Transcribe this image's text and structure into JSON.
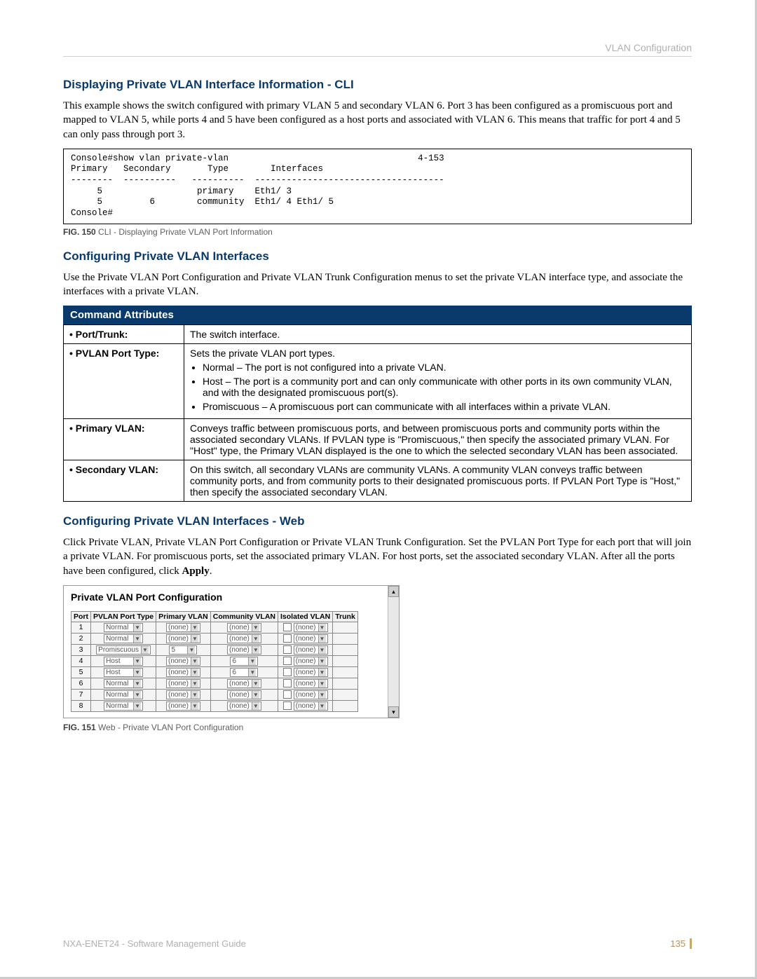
{
  "header": {
    "section_name": "VLAN Configuration"
  },
  "sec1": {
    "title": "Displaying Private VLAN Interface Information - CLI",
    "body": "This example shows the switch configured with primary VLAN 5 and secondary VLAN 6. Port 3 has been configured as a promiscuous port and mapped to VLAN 5, while ports 4 and 5 have been configured as a host ports and associated with VLAN 6. This means that traffic for port 4 and 5 can only pass through port 3.",
    "cli": "Console#show vlan private-vlan                                    4-153\nPrimary   Secondary       Type        Interfaces\n--------  ----------   ----------  ------------------------------------\n     5                  primary    Eth1/ 3\n     5         6        community  Eth1/ 4 Eth1/ 5\nConsole#",
    "fig_num": "FIG. 150",
    "fig_caption": "CLI - Displaying Private VLAN Port Information"
  },
  "sec2": {
    "title": "Configuring Private VLAN Interfaces",
    "body": "Use the Private VLAN Port Configuration and Private VLAN Trunk Configuration menus to set the private VLAN interface type, and associate the interfaces with a private VLAN.",
    "cmd_header": "Command Attributes",
    "rows": {
      "r1": {
        "label": "• Port/Trunk:",
        "desc": "The switch interface."
      },
      "r2": {
        "label": "• PVLAN Port Type:",
        "intro": "Sets the private VLAN port types.",
        "b1": "Normal – The port is not configured into a private VLAN.",
        "b2": "Host – The port is a community port and can only communicate with other ports in its own community VLAN, and with the designated promiscuous port(s).",
        "b3": "Promiscuous – A promiscuous port can communicate with all interfaces within a private VLAN."
      },
      "r3": {
        "label": "• Primary VLAN:",
        "desc": "Conveys traffic between promiscuous ports, and between promiscuous ports and community ports within the associated secondary VLANs. If PVLAN type is \"Promiscuous,\" then specify the associated primary VLAN. For \"Host\" type, the Primary VLAN displayed is the one to which the selected secondary VLAN has been associated."
      },
      "r4": {
        "label": "• Secondary VLAN:",
        "desc": "On this switch, all secondary VLANs are community VLANs. A community VLAN conveys traffic between community ports, and from community ports to their designated promiscuous ports. If PVLAN Port Type is \"Host,\" then specify the associated secondary VLAN."
      }
    }
  },
  "sec3": {
    "title": "Configuring Private VLAN Interfaces - Web",
    "body_a": "Click Private VLAN, Private VLAN Port Configuration or Private VLAN Trunk Configuration. Set the PVLAN Port Type for each port that will join a private VLAN. For promiscuous ports, set the associated primary VLAN. For host ports, set the associated secondary VLAN. After all the ports have been configured, click ",
    "body_b": "Apply",
    "body_c": ".",
    "fig_title": "Private VLAN Port Configuration",
    "cols": {
      "c1": "Port",
      "c2": "PVLAN Port Type",
      "c3": "Primary VLAN",
      "c4": "Community VLAN",
      "c5": "Isolated VLAN",
      "c6": "Trunk"
    },
    "ports": [
      {
        "n": "1",
        "type": "Normal",
        "pri": "(none)",
        "com": "(none)",
        "iso": "(none)"
      },
      {
        "n": "2",
        "type": "Normal",
        "pri": "(none)",
        "com": "(none)",
        "iso": "(none)"
      },
      {
        "n": "3",
        "type": "Promiscuous",
        "pri": "5",
        "com": "(none)",
        "iso": "(none)"
      },
      {
        "n": "4",
        "type": "Host",
        "pri": "(none)",
        "com": "6",
        "iso": "(none)"
      },
      {
        "n": "5",
        "type": "Host",
        "pri": "(none)",
        "com": "6",
        "iso": "(none)"
      },
      {
        "n": "6",
        "type": "Normal",
        "pri": "(none)",
        "com": "(none)",
        "iso": "(none)"
      },
      {
        "n": "7",
        "type": "Normal",
        "pri": "(none)",
        "com": "(none)",
        "iso": "(none)"
      },
      {
        "n": "8",
        "type": "Normal",
        "pri": "(none)",
        "com": "(none)",
        "iso": "(none)"
      }
    ],
    "fig_num": "FIG. 151",
    "fig_caption": "Web - Private VLAN Port Configuration"
  },
  "footer": {
    "doc": "NXA-ENET24 - Software Management Guide",
    "page": "135"
  },
  "colors": {
    "brand_blue": "#0a3a6b",
    "muted_gray": "#b0b0b0",
    "page_accent": "#c9a96a"
  }
}
